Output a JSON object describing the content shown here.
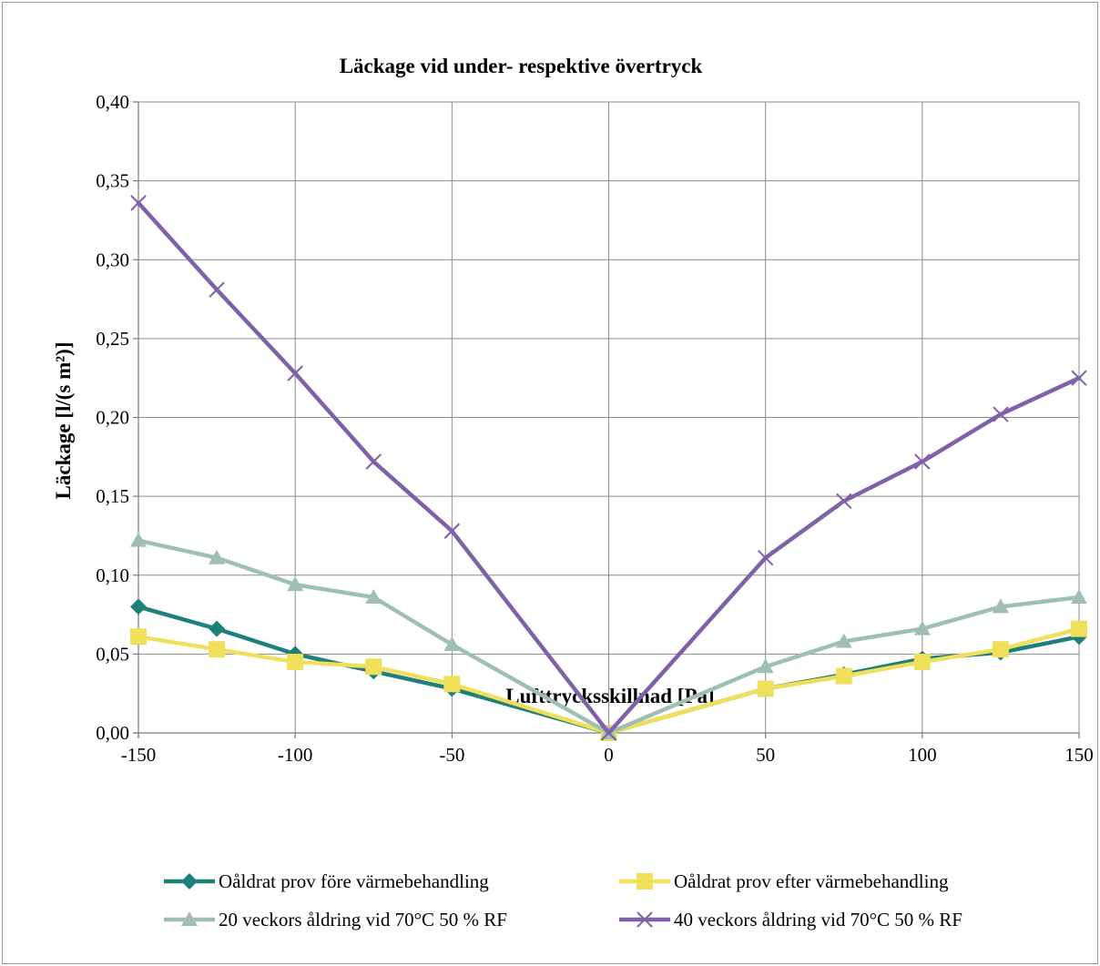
{
  "chart_data": {
    "type": "line",
    "title": "Läckage vid under- respektive övertryck",
    "xlabel": "Lufttrycksskillnad [Pa]",
    "ylabel": "Läckage [l/(s m²)]",
    "xlim": [
      -150,
      150
    ],
    "ylim": [
      0,
      0.4
    ],
    "x_ticks": [
      -150,
      -100,
      -50,
      0,
      50,
      100,
      150
    ],
    "x_tick_labels": [
      "-150",
      "-100",
      "-50",
      "0",
      "50",
      "100",
      "150"
    ],
    "y_ticks": [
      0,
      0.05,
      0.1,
      0.15,
      0.2,
      0.25,
      0.3,
      0.35,
      0.4
    ],
    "y_tick_labels": [
      "0,00",
      "0,05",
      "0,10",
      "0,15",
      "0,20",
      "0,25",
      "0,30",
      "0,35",
      "0,40"
    ],
    "grid": true,
    "legend_position": "bottom",
    "x": [
      -150,
      -125,
      -100,
      -75,
      -50,
      0,
      50,
      75,
      100,
      125,
      150
    ],
    "series": [
      {
        "name": "Oåldrat prov före värmebehandling",
        "color": "#1f7f7a",
        "marker": "diamond",
        "values": [
          0.08,
          0.066,
          0.05,
          0.039,
          0.028,
          0.0,
          0.028,
          0.037,
          0.047,
          0.051,
          0.061
        ]
      },
      {
        "name": "Oåldrat prov efter värmebehandling",
        "color": "#f0df5a",
        "marker": "square",
        "values": [
          0.061,
          0.053,
          0.045,
          0.042,
          0.031,
          0.0,
          0.028,
          0.036,
          0.045,
          0.053,
          0.066
        ]
      },
      {
        "name": "20 veckors åldring vid 70°C 50 % RF",
        "color": "#9fbfb0",
        "marker": "triangle",
        "values": [
          0.122,
          0.111,
          0.094,
          0.086,
          0.056,
          0.0,
          0.042,
          0.058,
          0.066,
          0.08,
          0.086
        ]
      },
      {
        "name": "40 veckors åldring vid 70°C 50 % RF",
        "color": "#8060a8",
        "marker": "x",
        "values": [
          0.336,
          0.281,
          0.228,
          0.172,
          0.128,
          0.0,
          0.111,
          0.147,
          0.172,
          0.202,
          0.225
        ]
      }
    ]
  }
}
